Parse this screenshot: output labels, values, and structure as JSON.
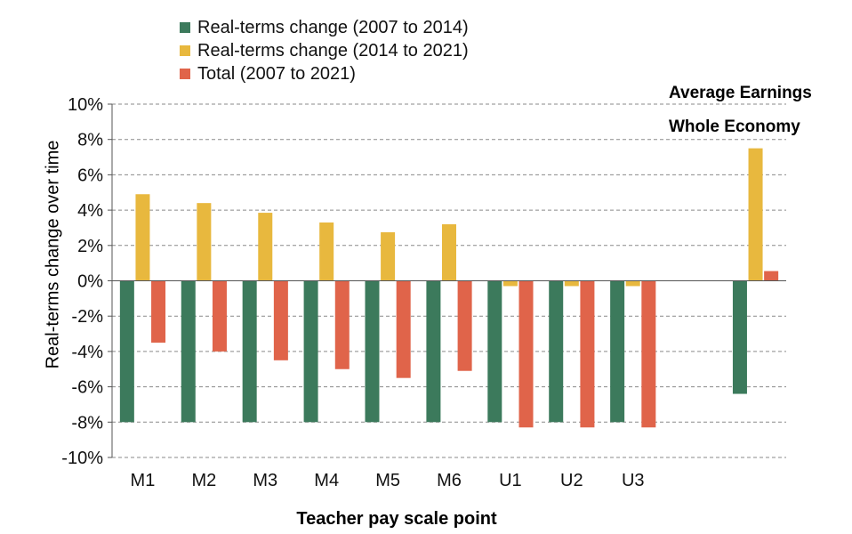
{
  "chart_data": {
    "type": "bar",
    "categories": [
      "M1",
      "M2",
      "M3",
      "M4",
      "M5",
      "M6",
      "U1",
      "U2",
      "U3",
      "",
      "Average Earnings Whole Economy"
    ],
    "series": [
      {
        "name": "Real-terms change (2007 to 2014)",
        "color": "#3c7a5c",
        "values": [
          -8.0,
          -8.0,
          -8.0,
          -8.0,
          -8.0,
          -8.0,
          -8.0,
          -8.0,
          -8.0,
          null,
          -6.4
        ]
      },
      {
        "name": "Real-terms change (2014 to 2021)",
        "color": "#e8b83e",
        "values": [
          4.9,
          4.4,
          3.85,
          3.3,
          2.75,
          3.2,
          -0.3,
          -0.3,
          -0.3,
          null,
          7.5
        ]
      },
      {
        "name": "Total (2007 to 2021)",
        "color": "#e0644a",
        "values": [
          -3.5,
          -4.0,
          -4.5,
          -5.0,
          -5.5,
          -5.1,
          -8.3,
          -8.3,
          -8.3,
          null,
          0.55
        ]
      }
    ],
    "xlabel": "Teacher pay scale point",
    "ylabel": "Real-terms change over time",
    "ylim": [
      -10,
      10
    ],
    "yticks": [
      "10%",
      "8%",
      "6%",
      "4%",
      "2%",
      "0%",
      "-2%",
      "-4%",
      "-6%",
      "-8%",
      "-10%"
    ],
    "xticks": [
      "M1",
      "M2",
      "M3",
      "M4",
      "M5",
      "M6",
      "U1",
      "U2",
      "U3"
    ],
    "annotations": [
      "Average Earnings",
      "Whole Economy"
    ],
    "grid": true,
    "legend": "top-left"
  }
}
